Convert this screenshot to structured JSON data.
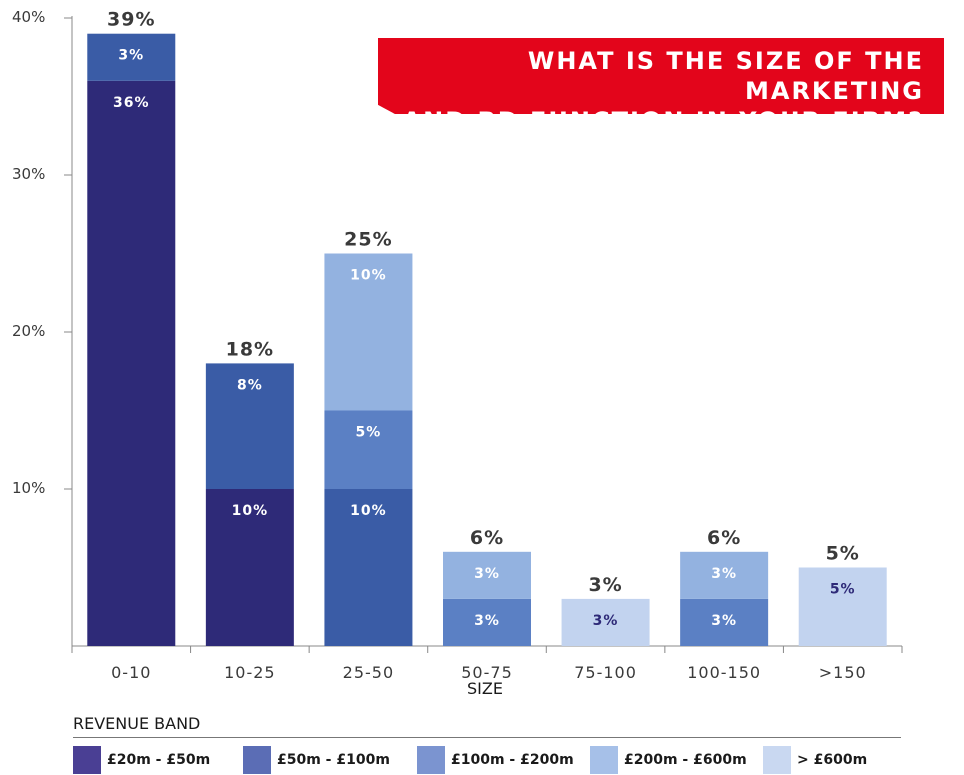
{
  "chart_data": {
    "type": "bar",
    "stacked": true,
    "title": [
      "What is the size of the marketing",
      "and BD function in your firm?"
    ],
    "xlabel": "SIZE",
    "ylabel": "",
    "ylim": [
      0,
      40
    ],
    "yticks": [
      10,
      20,
      30,
      40
    ],
    "ytick_labels": [
      "10%",
      "20%",
      "30%",
      "40%"
    ],
    "categories": [
      "0-10",
      "10-25",
      "25-50",
      "50-75",
      "75-100",
      "100-150",
      ">150"
    ],
    "totals": [
      39,
      18,
      25,
      6,
      3,
      6,
      5
    ],
    "total_labels": [
      "39%",
      "18%",
      "25%",
      "6%",
      "3%",
      "6%",
      "5%"
    ],
    "series": [
      {
        "name": "£20m - £50m",
        "color": "#2e2a78",
        "label_color": "#ffffff",
        "values": [
          36,
          10,
          0,
          0,
          0,
          0,
          0
        ],
        "labels": [
          "36%",
          "10%",
          "",
          "",
          "",
          "",
          ""
        ]
      },
      {
        "name": "£50m - £100m",
        "color": "#3a5ca6",
        "label_color": "#ffffff",
        "values": [
          3,
          8,
          10,
          0,
          0,
          0,
          0
        ],
        "labels": [
          "3%",
          "8%",
          "10%",
          "",
          "",
          "",
          ""
        ]
      },
      {
        "name": "£100m - £200m",
        "color": "#5b80c4",
        "label_color": "#ffffff",
        "values": [
          0,
          0,
          5,
          3,
          0,
          3,
          0
        ],
        "labels": [
          "",
          "",
          "5%",
          "3%",
          "",
          "3%",
          ""
        ]
      },
      {
        "name": "£200m - £600m",
        "color": "#93b2e0",
        "label_color": "#ffffff",
        "values": [
          0,
          0,
          10,
          3,
          0,
          3,
          0
        ],
        "labels": [
          "",
          "",
          "10%",
          "3%",
          "",
          "3%",
          ""
        ]
      },
      {
        "name": "> £600m",
        "color": "#c2d3ef",
        "label_color": "#2e2a78",
        "values": [
          0,
          0,
          0,
          0,
          3,
          0,
          5
        ],
        "labels": [
          "",
          "",
          "",
          "",
          "3%",
          "",
          "5%"
        ]
      }
    ],
    "grid": false,
    "legend_position": "bottom"
  },
  "legend": {
    "title": "Revenue band",
    "items": [
      {
        "label": "£20m - £50m",
        "color": "#4a3f94"
      },
      {
        "label": "£50m - £100m",
        "color": "#5b6db5"
      },
      {
        "label": "£100m - £200m",
        "color": "#7b94d0"
      },
      {
        "label": "£200m - £600m",
        "color": "#a6c0e8"
      },
      {
        "label": "> £600m",
        "color": "#c9d8f1"
      }
    ]
  },
  "colors": {
    "title_banner": "#e3051b",
    "axis": "#888888",
    "total_label": "#3a3a3a"
  }
}
